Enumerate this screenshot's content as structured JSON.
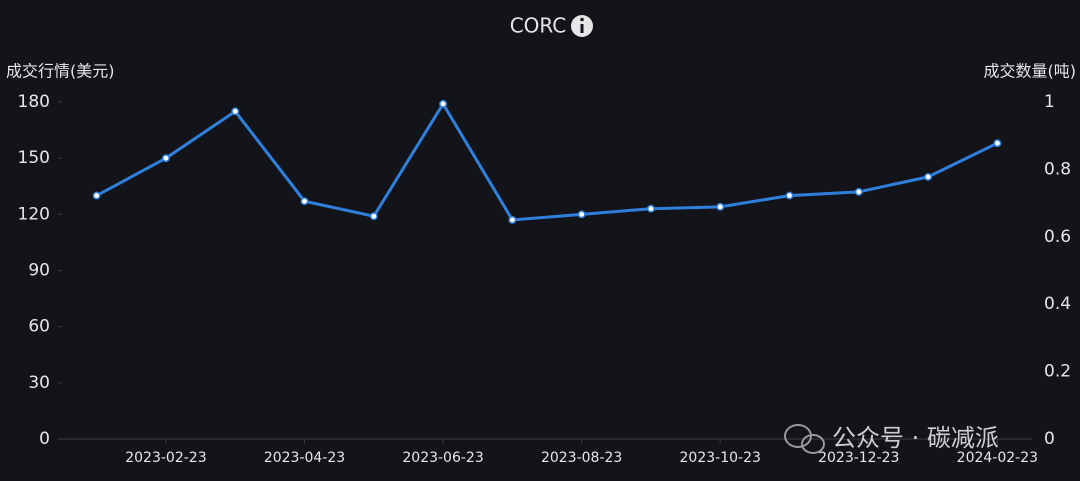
{
  "chart_data": {
    "type": "line",
    "title": "CORC",
    "y_label": "成交行情(美元)",
    "y2_label": "成交数量(吨)",
    "categories": [
      null,
      "2023-02-23",
      null,
      "2023-04-23",
      null,
      "2023-06-23",
      null,
      "2023-08-23",
      null,
      "2023-10-23",
      null,
      "2023-12-23",
      null,
      "2024-02-23"
    ],
    "series": [
      {
        "name": "成交行情",
        "color": "#2f80dc",
        "values": [
          130,
          150,
          175,
          127,
          119,
          179,
          117,
          120,
          123,
          124,
          130,
          132,
          140,
          158
        ]
      }
    ],
    "ylim": [
      0,
      180
    ],
    "yticks": [
      0,
      30,
      60,
      90,
      120,
      150,
      180
    ],
    "y2lim": [
      0,
      1
    ],
    "y2ticks": [
      0,
      0.2,
      0.4,
      0.6,
      0.8,
      1
    ],
    "grid": false
  },
  "watermark": "公众号 · 碳减派"
}
